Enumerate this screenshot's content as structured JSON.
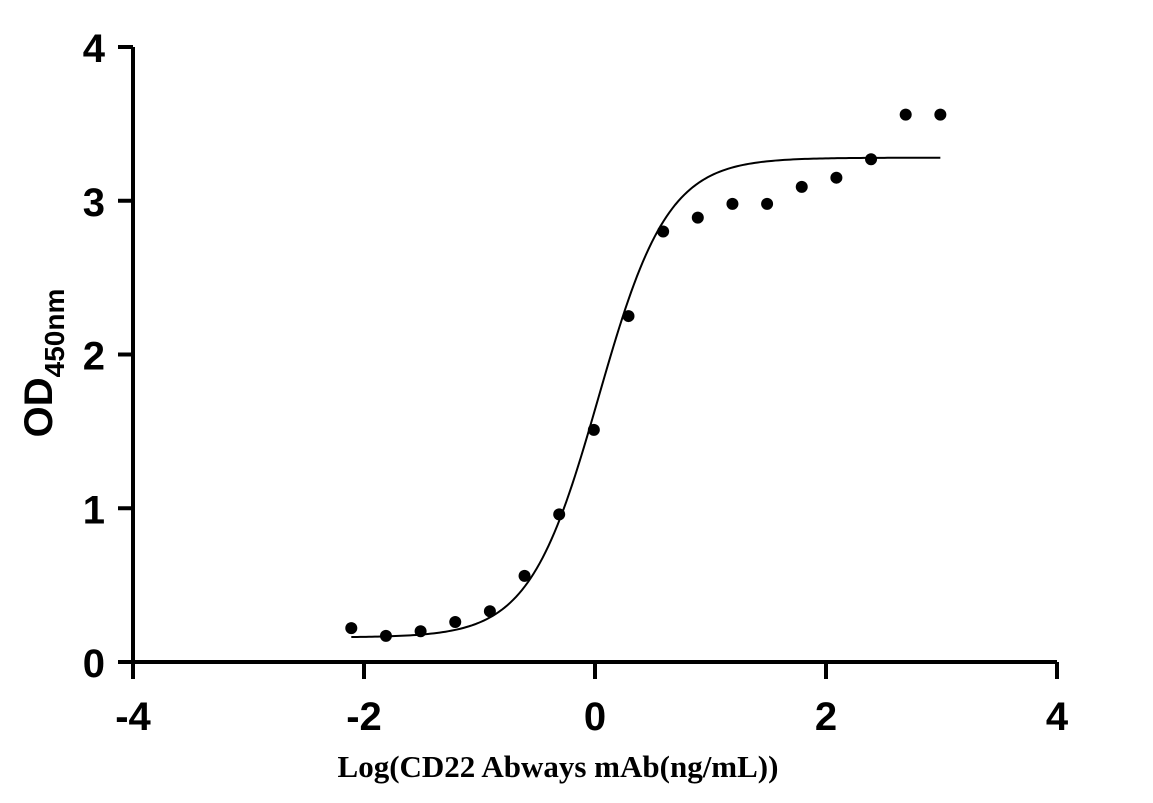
{
  "chart_data": {
    "type": "scatter",
    "title": "",
    "xlabel": "Log(CD22 Abways mAb(ng/mL))",
    "ylabel": {
      "main": "OD",
      "subscript": "450nm"
    },
    "xlim": [
      -4,
      4
    ],
    "ylim": [
      0,
      4
    ],
    "x_ticks": [
      -4,
      -2,
      0,
      2,
      4
    ],
    "x_tick_labels": [
      "-4",
      "-2",
      "0",
      "2",
      "4"
    ],
    "y_ticks": [
      0,
      1,
      2,
      3,
      4
    ],
    "y_tick_labels": [
      "0",
      "1",
      "2",
      "3",
      "4"
    ],
    "grid": false,
    "series": [
      {
        "kind": "points",
        "x": [
          -2.11,
          -1.81,
          -1.51,
          -1.21,
          -0.91,
          -0.61,
          -0.31,
          -0.01,
          0.29,
          0.59,
          0.89,
          1.19,
          1.49,
          1.79,
          2.09,
          2.39,
          2.69,
          2.99
        ],
        "y": [
          0.22,
          0.17,
          0.2,
          0.26,
          0.33,
          0.56,
          0.96,
          1.51,
          2.25,
          2.8,
          2.89,
          2.98,
          2.98,
          3.09,
          3.15,
          3.27,
          3.56,
          3.56
        ]
      },
      {
        "kind": "fit-curve",
        "model": "four-parameter-logistic",
        "bottom": 0.16,
        "top": 3.28,
        "logEC50": 0.03,
        "hillslope": 1.45,
        "x_range": [
          -2.11,
          2.99
        ]
      }
    ],
    "color": "#000000"
  }
}
